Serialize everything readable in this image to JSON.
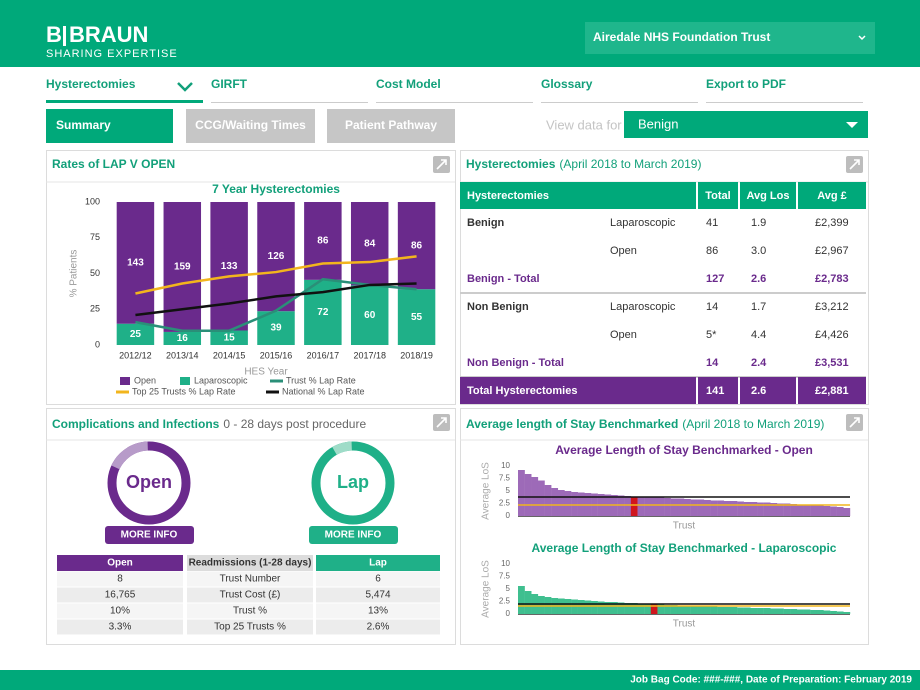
{
  "header": {
    "brand_b": "B",
    "brand_name": "BRAUN",
    "tagline": "SHARING EXPERTISE",
    "trust_select": "Airedale NHS Foundation Trust"
  },
  "tabs": [
    {
      "label": "Hysterectomies",
      "active": true
    },
    {
      "label": "GIRFT"
    },
    {
      "label": "Cost Model"
    },
    {
      "label": "Glossary"
    },
    {
      "label": "Export to PDF"
    }
  ],
  "buttons": [
    {
      "label": "Summary",
      "active": true
    },
    {
      "label": "CCG/Waiting Times"
    },
    {
      "label": "Patient Pathway"
    }
  ],
  "view_label": "View data for",
  "view_value": "Benign",
  "rates_title": "Rates of LAP V OPEN",
  "chart_data": [
    {
      "type": "bar",
      "stacking": "percent",
      "title": "7 Year Hysterectomies",
      "xlabel": "HES Year",
      "ylabel": "% Patients",
      "categories": [
        "2012/12",
        "2013/14",
        "2014/15",
        "2015/16",
        "2016/17",
        "2017/18",
        "2018/19"
      ],
      "series": [
        {
          "name": "Open",
          "type": "bar",
          "color": "#6a2a8c",
          "values": [
            143,
            159,
            133,
            126,
            86,
            84,
            86
          ]
        },
        {
          "name": "Laparoscopic",
          "type": "bar",
          "color": "#1fb088",
          "values": [
            25,
            16,
            15,
            39,
            72,
            60,
            55
          ]
        },
        {
          "name": "Trust % Lap Rate",
          "type": "line",
          "color": "#2a8f78",
          "values": [
            16,
            10,
            10,
            24,
            46,
            42,
            39
          ]
        },
        {
          "name": "Top 25 Trusts % Lap Rate",
          "type": "line",
          "color": "#f2b51d",
          "values": [
            36,
            43,
            48,
            51,
            57,
            58,
            62
          ]
        },
        {
          "name": "National % Lap Rate",
          "type": "line",
          "color": "#111111",
          "values": [
            21,
            25,
            29,
            34,
            37,
            42,
            43
          ]
        }
      ],
      "ylim": [
        0,
        100
      ],
      "yticks": [
        0,
        25,
        50,
        75,
        100
      ]
    },
    {
      "type": "bar",
      "title": "Average Length of Stay Benchmarked - Open",
      "title_color": "#6a2a8c",
      "xlabel": "Trust",
      "ylabel": "Average LoS",
      "color": "#9d6ab8",
      "values": [
        9.2,
        8.4,
        7.8,
        7.1,
        6.2,
        5.6,
        5.2,
        5.0,
        4.8,
        4.7,
        4.6,
        4.5,
        4.4,
        4.3,
        4.2,
        4.1,
        4.0,
        3.9,
        3.9,
        3.8,
        3.7,
        3.7,
        3.6,
        3.5,
        3.5,
        3.4,
        3.3,
        3.3,
        3.2,
        3.1,
        3.1,
        3.0,
        3.0,
        2.9,
        2.8,
        2.8,
        2.7,
        2.7,
        2.6,
        2.5,
        2.5,
        2.4,
        2.3,
        2.3,
        2.2,
        2.1,
        2.0,
        1.9,
        1.8,
        1.6
      ],
      "highlight": {
        "index": 17,
        "color": "#d0161e"
      },
      "reference_lines": [
        {
          "value": 3.8,
          "color": "#111111"
        },
        {
          "value": 2.2,
          "color": "#f2b51d"
        }
      ],
      "ylim": [
        0,
        10
      ],
      "yticks": [
        0,
        2.5,
        5,
        7.5,
        10
      ]
    },
    {
      "type": "bar",
      "title": "Average Length of Stay Benchmarked - Laparoscopic",
      "title_color": "#12a07a",
      "xlabel": "Trust",
      "ylabel": "Average LoS",
      "color": "#3fbf8f",
      "values": [
        5.6,
        4.6,
        4.0,
        3.6,
        3.4,
        3.2,
        3.1,
        3.0,
        2.9,
        2.8,
        2.7,
        2.6,
        2.5,
        2.4,
        2.4,
        2.3,
        2.2,
        2.2,
        2.1,
        2.0,
        1.9,
        1.9,
        1.8,
        1.8,
        1.7,
        1.7,
        1.6,
        1.6,
        1.5,
        1.5,
        1.4,
        1.4,
        1.4,
        1.3,
        1.3,
        1.2,
        1.2,
        1.2,
        1.1,
        1.1,
        1.0,
        1.0,
        0.9,
        0.9,
        0.8,
        0.8,
        0.7,
        0.6,
        0.5,
        0.4
      ],
      "highlight": {
        "index": 20,
        "color": "#d0161e"
      },
      "reference_lines": [
        {
          "value": 2.0,
          "color": "#111111"
        },
        {
          "value": 1.6,
          "color": "#f2b51d"
        }
      ],
      "ylim": [
        0,
        10
      ],
      "yticks": [
        0,
        2.5,
        5,
        7.5,
        10
      ]
    }
  ],
  "hyst_table": {
    "title": "Hysterectomies",
    "subtitle": "(April 2018 to March 2019)",
    "columns": [
      "Hysterectomies",
      "Total",
      "Avg Los",
      "Avg £"
    ],
    "rows": [
      {
        "group": "Benign",
        "type": "Laparoscopic",
        "cells": [
          "41",
          "1.9",
          "£2,399"
        ]
      },
      {
        "type": "Open",
        "cells": [
          "86",
          "3.0",
          "£2,967"
        ]
      },
      {
        "group": "Benign - Total",
        "style": "subtotal",
        "cells": [
          "127",
          "2.6",
          "£2,783"
        ]
      },
      {
        "group": "Non Benign",
        "type": "Laparoscopic",
        "cells": [
          "14",
          "1.7",
          "£3,212"
        ]
      },
      {
        "type": "Open",
        "cells": [
          "5*",
          "4.4",
          "£4,426"
        ]
      },
      {
        "group": "Non Benign - Total",
        "style": "subtotal",
        "cells": [
          "14",
          "2.4",
          "£3,531"
        ]
      },
      {
        "group": "Total Hysterectomies",
        "style": "total",
        "cells": [
          "141",
          "2.6",
          "£2,881"
        ]
      }
    ]
  },
  "complications": {
    "title": "Complications and Infections",
    "subtitle": "0 - 28 days post procedure",
    "donuts": [
      {
        "label": "Open",
        "button": "MORE INFO",
        "color": "#6a2a8c",
        "accent": "#b79bc9"
      },
      {
        "label": "Lap",
        "button": "MORE INFO",
        "color": "#1fb088",
        "accent": "#9fdcc8"
      }
    ],
    "table": {
      "columns": [
        "Open",
        "Readmissions (1-28 days)",
        "Lap"
      ],
      "rows": [
        [
          "8",
          "Trust Number",
          "6"
        ],
        [
          "16,765",
          "Trust Cost (£)",
          "5,474"
        ],
        [
          "10%",
          "Trust %",
          "13%"
        ],
        [
          "3.3%",
          "Top 25 Trusts %",
          "2.6%"
        ]
      ]
    }
  },
  "los_panel": {
    "title": "Average length of Stay Benchmarked",
    "subtitle": "(April 2018 to March 2019)"
  },
  "footer": "Job Bag Code: ###-###, Date of Preparation: February 2019"
}
